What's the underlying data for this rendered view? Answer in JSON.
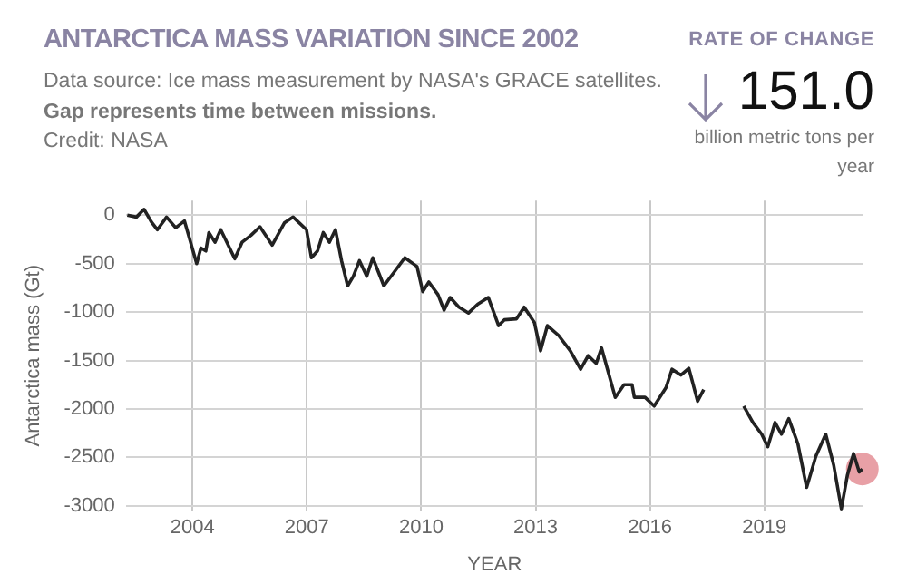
{
  "chart_data": {
    "type": "line",
    "title": "ANTARCTICA MASS VARIATION SINCE 2002",
    "subtitle": "Data source: Ice mass measurement by NASA's GRACE satellites.",
    "annotations": [
      "Gap represents time between missions.",
      "Credit: NASA",
      "RATE OF CHANGE",
      "151.0",
      "billion metric tons per year"
    ],
    "xlabel": "YEAR",
    "ylabel": "Antarctica mass (Gt)",
    "xlim": [
      2002.25,
      2021.6
    ],
    "ylim": [
      -3050,
      150
    ],
    "xticks": [
      2004,
      2007,
      2010,
      2013,
      2016,
      2019
    ],
    "yticks": [
      0,
      -500,
      -1000,
      -1500,
      -2000,
      -2500,
      -3000
    ],
    "grid": true,
    "marker": "none",
    "line_style": "solid",
    "series": [
      {
        "color": "#222222",
        "x": [
          2002.29,
          2002.53,
          2002.73,
          2002.92,
          2003.08,
          2003.32,
          2003.56,
          2003.79,
          2004.11,
          2004.22,
          2004.35,
          2004.43,
          2004.59,
          2004.74,
          2005.11,
          2005.3,
          2005.53,
          2005.77,
          2006.09,
          2006.41,
          2006.64,
          2006.99,
          2007.12,
          2007.28,
          2007.43,
          2007.59,
          2007.75,
          2007.91,
          2008.07,
          2008.22,
          2008.38,
          2008.57,
          2008.73,
          2009.02,
          2009.57,
          2009.89,
          2010.04,
          2010.2,
          2010.44,
          2010.6,
          2010.76,
          2010.99,
          2011.24,
          2011.48,
          2011.76,
          2012.03,
          2012.18,
          2012.5,
          2012.7,
          2012.97,
          2013.13,
          2013.31,
          2013.6,
          2013.91,
          2014.18,
          2014.38,
          2014.59,
          2014.73,
          2015.09,
          2015.32,
          2015.53,
          2015.59,
          2015.87,
          2016.11,
          2016.42,
          2016.58,
          2016.81,
          2017.02,
          2017.25,
          2017.41,
          2017.9,
          2018.46,
          2018.7,
          2018.93,
          2019.09,
          2019.28,
          2019.45,
          2019.64,
          2019.88,
          2020.11,
          2020.35,
          2020.61,
          2020.82,
          2021.02,
          2021.18,
          2021.34,
          2021.49,
          2021.57
        ],
        "values": [
          0,
          -20,
          60,
          -70,
          -150,
          -20,
          -130,
          -60,
          -500,
          -340,
          -370,
          -180,
          -280,
          -150,
          -450,
          -280,
          -210,
          -120,
          -310,
          -80,
          -20,
          -150,
          -440,
          -370,
          -180,
          -280,
          -150,
          -470,
          -730,
          -630,
          -470,
          -630,
          -440,
          -730,
          -440,
          -530,
          -790,
          -690,
          -820,
          -980,
          -850,
          -950,
          -1010,
          -920,
          -850,
          -1140,
          -1080,
          -1070,
          -950,
          -1110,
          -1400,
          -1140,
          -1240,
          -1400,
          -1590,
          -1450,
          -1530,
          -1370,
          -1880,
          -1750,
          -1750,
          -1880,
          -1880,
          -1970,
          -1780,
          -1590,
          -1650,
          -1580,
          -1920,
          -1800,
          null,
          -1970,
          -2140,
          -2260,
          -2390,
          -2140,
          -2260,
          -2100,
          -2360,
          -2810,
          -2490,
          -2260,
          -2580,
          -3030,
          -2680,
          -2460,
          -2650,
          -2620
        ]
      },
      {
        "type": "scatter",
        "color": "#e8a0a6",
        "marker": "circle",
        "x": [
          2021.57
        ],
        "values": [
          -2620
        ]
      }
    ]
  }
}
